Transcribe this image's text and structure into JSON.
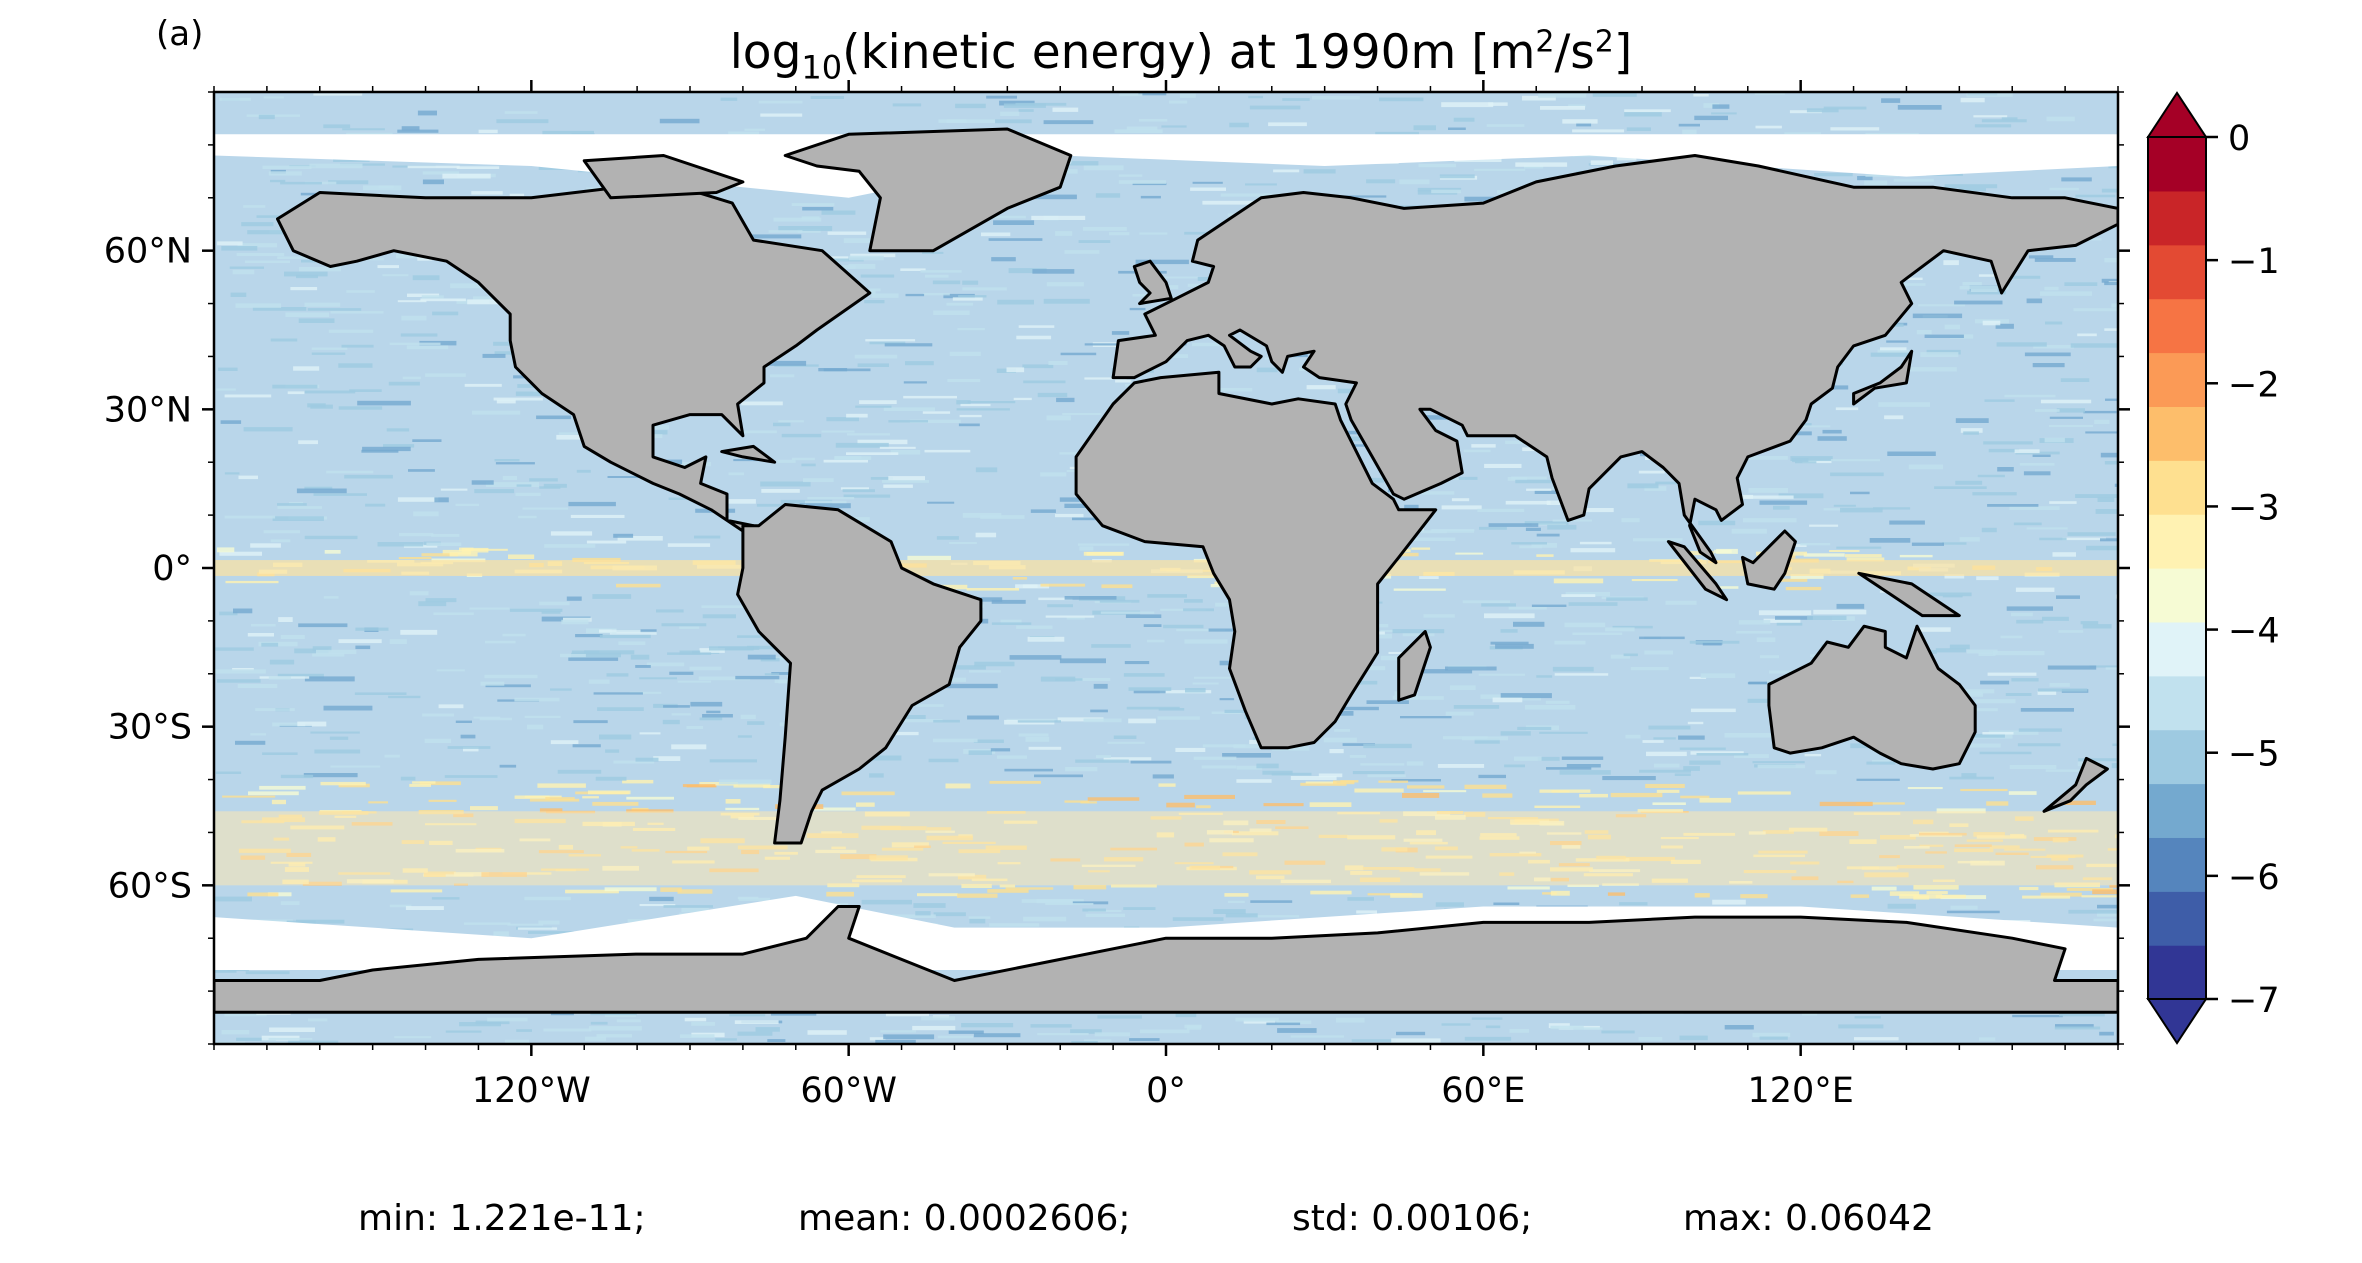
{
  "panel_label": "(a)",
  "title": {
    "prefix": "log",
    "prefix_sub": "10",
    "middle": "(kinetic energy) at 1990m [m",
    "sup1": "2",
    "mid2": "/s",
    "sup2": "2",
    "suffix": "]"
  },
  "map": {
    "projection": "plate-carree",
    "lon_ticks": [
      "120°W",
      "60°W",
      "0°",
      "60°E",
      "120°E"
    ],
    "lat_ticks": [
      "60°N",
      "30°N",
      "0°",
      "30°S",
      "60°S"
    ],
    "land_color": "#b2b2b2",
    "coast_color": "#000000"
  },
  "colorbar": {
    "min": -7,
    "max": 0,
    "step": 0.5,
    "extend": "both",
    "tick_labels": [
      "0",
      "−1",
      "−2",
      "−3",
      "−4",
      "−5",
      "−6",
      "−7"
    ],
    "colors": [
      "#313695",
      "#3e5da8",
      "#5585bd",
      "#74a9cf",
      "#9ecae1",
      "#c1e1ee",
      "#e0f3f8",
      "#f6fbd4",
      "#fff2b2",
      "#fee090",
      "#fdbe6b",
      "#fb9a56",
      "#f67444",
      "#e34a33",
      "#c92528",
      "#a50026"
    ]
  },
  "stats": {
    "min": "min: 1.221e-11;",
    "mean": "mean: 0.0002606;",
    "std": "std: 0.00106;",
    "max": "max: 0.06042"
  }
}
